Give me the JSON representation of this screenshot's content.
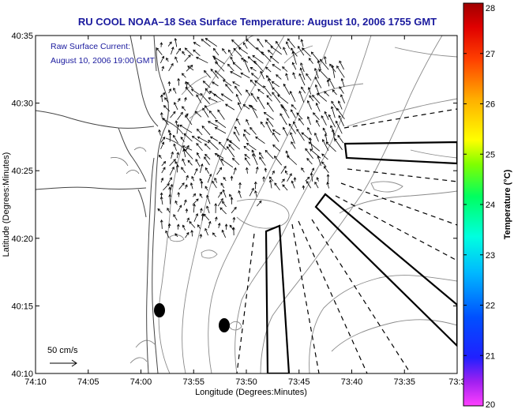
{
  "chart_data": {
    "type": "map",
    "title": "RU COOL  NOAA–18  Sea Surface Temperature:  August 10, 2006 1755 GMT",
    "annotation_lines": [
      "Raw Surface Current:",
      "August 10, 2006 19:00 GMT"
    ],
    "scale_label": "50 cm/s",
    "xlabel": "Longitude (Degrees:Minutes)",
    "ylabel": "Latitude (Degrees:Minutes)",
    "x_ticks": [
      "74:10",
      "74:05",
      "74:00",
      "73:55",
      "73:50",
      "73:45",
      "73:40",
      "73:35",
      "73:3"
    ],
    "y_ticks": [
      "40:35",
      "40:30",
      "40:25",
      "40:20",
      "40:15",
      "40:10"
    ],
    "colorbar": {
      "label": "Temperature (°C)",
      "range": [
        20,
        28
      ],
      "ticks": [
        "28",
        "27",
        "26",
        "25",
        "24",
        "23",
        "22",
        "21",
        "20"
      ]
    }
  }
}
